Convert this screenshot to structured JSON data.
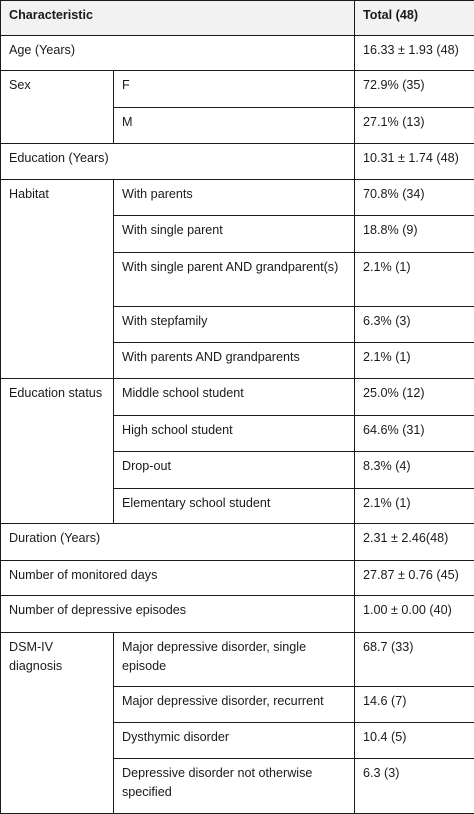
{
  "header": {
    "characteristic": "Characteristic",
    "total": "Total (48)"
  },
  "rows": {
    "age": {
      "label": "Age (Years)",
      "value": "16.33 ± 1.93 (48)"
    },
    "sex": {
      "label": "Sex",
      "items": [
        {
          "label": "F",
          "value": "72.9% (35)"
        },
        {
          "label": "M",
          "value": "27.1% (13)"
        }
      ]
    },
    "education_years": {
      "label": "Education (Years)",
      "value": "10.31 ± 1.74 (48)"
    },
    "habitat": {
      "label": "Habitat",
      "items": [
        {
          "label": "With parents",
          "value": "70.8% (34)"
        },
        {
          "label": "With single parent",
          "value": "18.8% (9)"
        },
        {
          "label": "With single parent AND grandparent(s)",
          "value": "2.1% (1)"
        },
        {
          "label": "With stepfamily",
          "value": "6.3% (3)"
        },
        {
          "label": "With parents AND grandparents",
          "value": "2.1% (1)"
        }
      ]
    },
    "education_status": {
      "label": "Education status",
      "items": [
        {
          "label": "Middle school student",
          "value": "25.0% (12)"
        },
        {
          "label": "High school student",
          "value": "64.6% (31)"
        },
        {
          "label": "Drop-out",
          "value": "8.3% (4)"
        },
        {
          "label": "Elementary school student",
          "value": "2.1% (1)"
        }
      ]
    },
    "duration": {
      "label": "Duration (Years)",
      "value": "2.31 ± 2.46(48)"
    },
    "monitored_days": {
      "label": "Number of monitored days",
      "value": "27.87 ± 0.76 (45)"
    },
    "depressive_episodes": {
      "label": "Number of depressive episodes",
      "value": "1.00 ± 0.00 (40)"
    },
    "dsm": {
      "label": "DSM-IV diagnosis",
      "items": [
        {
          "label": "Major depressive disorder, single episode",
          "value": "68.7 (33)"
        },
        {
          "label": "Major depressive disorder, recurrent",
          "value": "14.6 (7)"
        },
        {
          "label": "Dysthymic disorder",
          "value": "10.4 (5)"
        },
        {
          "label": "Depressive disorder not otherwise specified",
          "value": "6.3 (3)"
        }
      ]
    }
  }
}
